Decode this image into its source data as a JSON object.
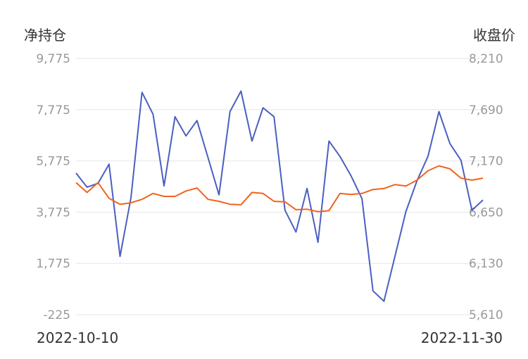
{
  "chart_data": {
    "type": "line",
    "ylabel_left": "净持仓",
    "ylabel_right": "收盘价",
    "x_start_label": "2022-10-10",
    "x_end_label": "2022-11-30",
    "left_axis": {
      "ticks": [
        "9,775",
        "7,775",
        "5,775",
        "3,775",
        "1,775",
        "-225"
      ],
      "ylim": [
        -225,
        9775
      ]
    },
    "right_axis": {
      "ticks": [
        "8,210",
        "7,690",
        "7,170",
        "6,650",
        "6,130",
        "5,610"
      ],
      "ylim": [
        5610,
        8210
      ]
    },
    "grid": true,
    "series": [
      {
        "axis": "left",
        "color": "#4a5fc1",
        "values": [
          5300,
          4750,
          4900,
          5650,
          2050,
          4350,
          8450,
          7600,
          4800,
          7500,
          6750,
          7350,
          5900,
          4450,
          7700,
          8500,
          6550,
          7850,
          7500,
          3850,
          3000,
          4700,
          2600,
          6550,
          5950,
          5200,
          4300,
          700,
          300,
          2050,
          3800,
          5000,
          5950,
          7700,
          6450,
          5800,
          3850,
          4250
        ]
      },
      {
        "axis": "right",
        "color": "#f0641e",
        "values": [
          6950,
          6850,
          6950,
          6790,
          6730,
          6745,
          6780,
          6840,
          6810,
          6810,
          6865,
          6895,
          6780,
          6760,
          6730,
          6725,
          6850,
          6840,
          6760,
          6755,
          6675,
          6680,
          6655,
          6665,
          6840,
          6830,
          6840,
          6880,
          6890,
          6930,
          6915,
          6975,
          7070,
          7120,
          7090,
          6995,
          6975,
          6995
        ]
      }
    ]
  }
}
